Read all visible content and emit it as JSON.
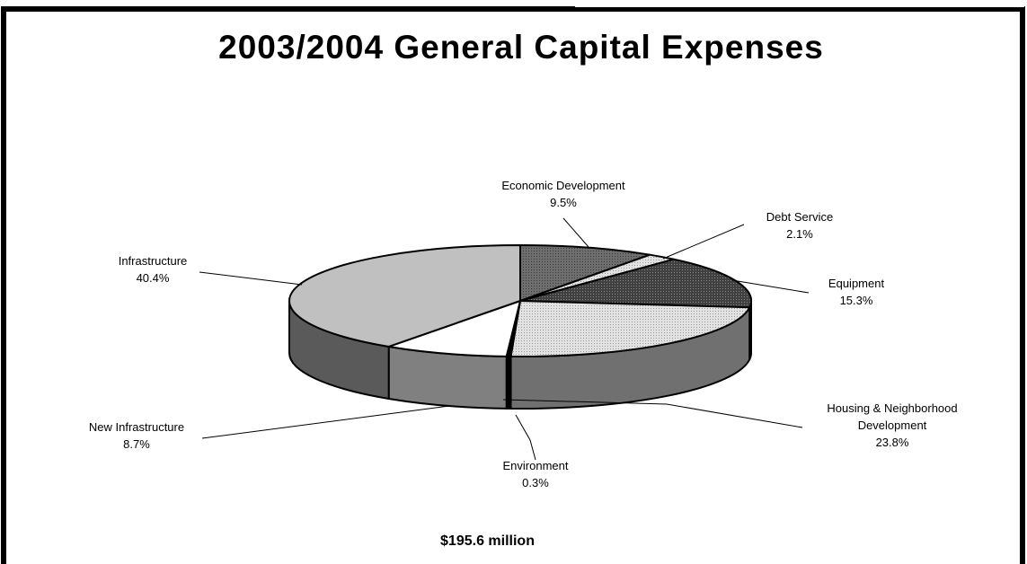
{
  "chart_data": {
    "type": "pie",
    "title": "2003/2004 General Capital Expenses",
    "total_label": "$195.6 million",
    "slices": [
      {
        "name": "Economic Development",
        "value": 9.5,
        "value_label": "9.5%",
        "fill": "#6a6a6a",
        "pattern": "dots-dark"
      },
      {
        "name": "Debt Service",
        "value": 2.1,
        "value_label": "2.1%",
        "fill": "#f0f0f0",
        "pattern": "dots-light"
      },
      {
        "name": "Equipment",
        "value": 15.3,
        "value_label": "15.3%",
        "fill": "#3c3c3c",
        "pattern": "dots-darker"
      },
      {
        "name": "Housing & Neighborhood Development",
        "name_lines": [
          "Housing & Neighborhood",
          "Development"
        ],
        "value": 23.8,
        "value_label": "23.8%",
        "fill": "#d8d8d8",
        "pattern": "dots-light"
      },
      {
        "name": "Environment",
        "value": 0.3,
        "value_label": "0.3%",
        "fill": "#000000",
        "pattern": "solid"
      },
      {
        "name": "New Infrastructure",
        "value": 8.7,
        "value_label": "8.7%",
        "fill": "#ffffff",
        "pattern": "solid"
      },
      {
        "name": "Infrastructure",
        "value": 40.4,
        "value_label": "40.4%",
        "fill": "#c0c0c0",
        "pattern": "solid"
      }
    ],
    "three_d": true,
    "start_angle_deg": 0,
    "direction": "clockwise"
  }
}
